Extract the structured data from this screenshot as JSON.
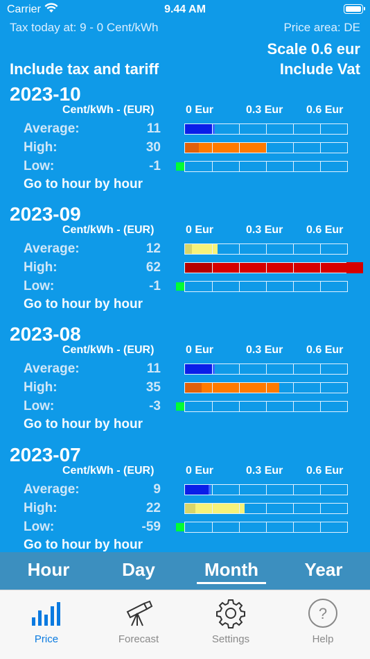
{
  "status": {
    "carrier": "Carrier",
    "time": "9.44 AM"
  },
  "header": {
    "tax_today": "Tax today at: 9 - 0 Cent/kWh",
    "price_area": "Price area: DE",
    "scale": "Scale 0.6 eur",
    "include_tax": "Include tax and tariff",
    "include_vat": "Include Vat"
  },
  "colors": {
    "background": "#0f9ae8",
    "blue": "#0a1ee8",
    "orange": "#ff7a00",
    "yellow": "#f6f27a",
    "red": "#d60000",
    "green": "#00ff33"
  },
  "months": [
    {
      "title": "2023-10",
      "unit": "Cent/kWh - (EUR)",
      "scale_labels": [
        "0 Eur",
        "0.3 Eur",
        "0.6 Eur"
      ],
      "rows": [
        {
          "label": "Average:",
          "value": "11"
        },
        {
          "label": "High:",
          "value": "30"
        },
        {
          "label": "Low:",
          "value": "-1"
        }
      ],
      "link": "Go to hour by hour"
    },
    {
      "title": "2023-09",
      "unit": "Cent/kWh - (EUR)",
      "scale_labels": [
        "0 Eur",
        "0.3 Eur",
        "0.6 Eur"
      ],
      "rows": [
        {
          "label": "Average:",
          "value": "12"
        },
        {
          "label": "High:",
          "value": "62"
        },
        {
          "label": "Low:",
          "value": "-1"
        }
      ],
      "link": "Go to hour by hour"
    },
    {
      "title": "2023-08",
      "unit": "Cent/kWh - (EUR)",
      "scale_labels": [
        "0 Eur",
        "0.3 Eur",
        "0.6 Eur"
      ],
      "rows": [
        {
          "label": "Average:",
          "value": "11"
        },
        {
          "label": "High:",
          "value": "35"
        },
        {
          "label": "Low:",
          "value": "-3"
        }
      ],
      "link": "Go to hour by hour"
    },
    {
      "title": "2023-07",
      "unit": "Cent/kWh - (EUR)",
      "scale_labels": [
        "0 Eur",
        "0.3 Eur",
        "0.6 Eur"
      ],
      "rows": [
        {
          "label": "Average:",
          "value": "9"
        },
        {
          "label": "High:",
          "value": "22"
        },
        {
          "label": "Low:",
          "value": "-59"
        }
      ],
      "link": "Go to hour by hour"
    }
  ],
  "periods": {
    "hour": "Hour",
    "day": "Day",
    "month": "Month",
    "year": "Year",
    "selected": "Month"
  },
  "tabs": [
    {
      "label": "Price",
      "icon": "bar-chart-icon",
      "active": true
    },
    {
      "label": "Forecast",
      "icon": "telescope-icon",
      "active": false
    },
    {
      "label": "Settings",
      "icon": "gear-icon",
      "active": false
    },
    {
      "label": "Help",
      "icon": "question-circle-icon",
      "active": false
    }
  ]
}
